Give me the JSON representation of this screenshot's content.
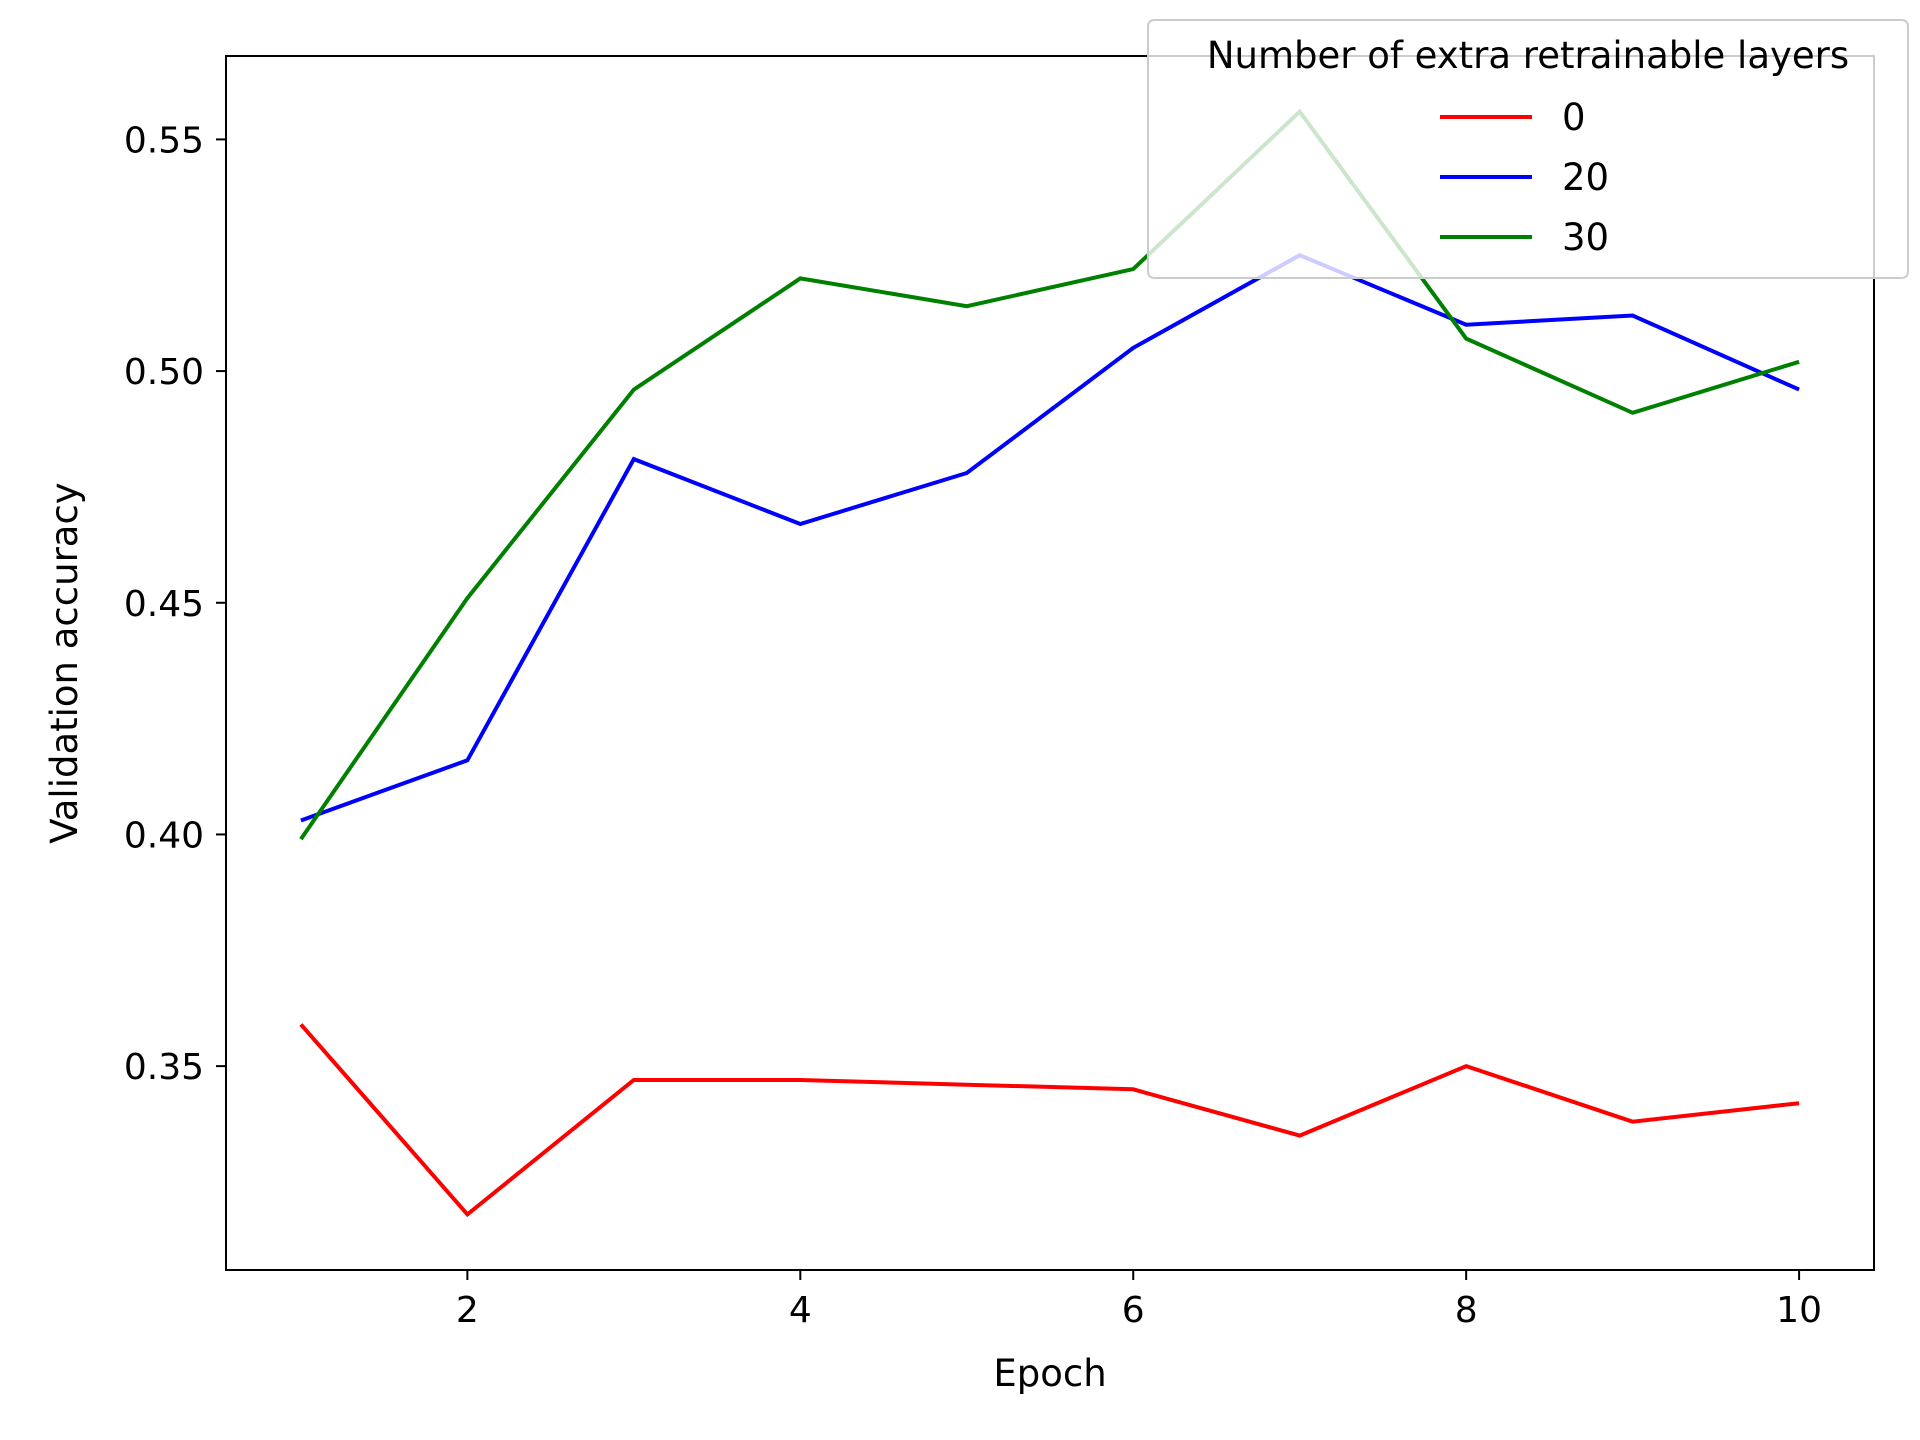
{
  "chart_data": {
    "type": "line",
    "xlabel": "Epoch",
    "ylabel": "Validation accuracy",
    "xlim": [
      0.55,
      10.45
    ],
    "ylim": [
      0.306,
      0.568
    ],
    "x_ticks": [
      2,
      4,
      6,
      8,
      10
    ],
    "x_tick_labels": [
      "2",
      "4",
      "6",
      "8",
      "10"
    ],
    "y_ticks": [
      0.35,
      0.4,
      0.45,
      0.5,
      0.55
    ],
    "y_tick_labels": [
      "0.35",
      "0.40",
      "0.45",
      "0.50",
      "0.55"
    ],
    "grid": false,
    "legend": {
      "title": "Number of extra retrainable layers",
      "placement": "top-right"
    },
    "x": [
      1,
      2,
      3,
      4,
      5,
      6,
      7,
      8,
      9,
      10
    ],
    "series": [
      {
        "name": "0",
        "color": "#ff0000",
        "values": [
          0.359,
          0.318,
          0.347,
          0.347,
          0.346,
          0.345,
          0.335,
          0.35,
          0.338,
          0.342
        ]
      },
      {
        "name": "20",
        "color": "#0000ff",
        "values": [
          0.403,
          0.416,
          0.481,
          0.467,
          0.478,
          0.505,
          0.525,
          0.51,
          0.512,
          0.496
        ]
      },
      {
        "name": "30",
        "color": "#008000",
        "values": [
          0.399,
          0.451,
          0.496,
          0.52,
          0.514,
          0.522,
          0.556,
          0.507,
          0.491,
          0.502
        ]
      }
    ]
  }
}
